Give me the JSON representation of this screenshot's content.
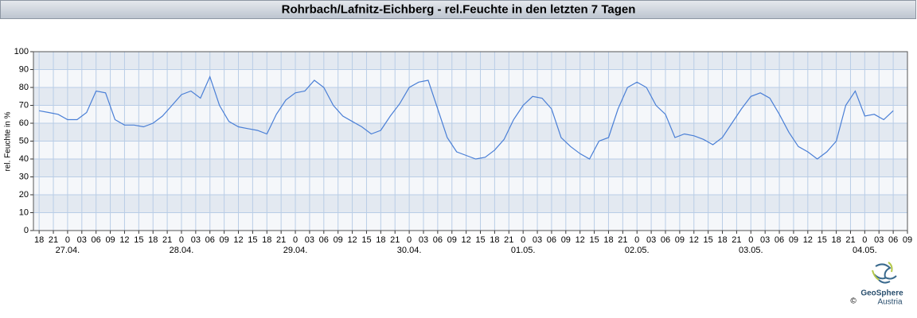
{
  "chart_data": {
    "type": "line",
    "title": "Rohrbach/Lafnitz-Eichberg - rel.Feuchte in den letzten 7 Tagen",
    "y_label": "rel. Feuchte in %",
    "logo_text": "GeoSphere",
    "logo_subtext": "Austria",
    "copyright": "©",
    "color": "#4a7fd6",
    "ylim": [
      0,
      100
    ],
    "yticks": [
      0,
      10,
      20,
      30,
      40,
      50,
      60,
      70,
      80,
      90,
      100
    ],
    "xlim": [
      -1.2,
      183
    ],
    "xticks": [
      {
        "value": 0,
        "label": "18"
      },
      {
        "value": 3,
        "label": "21"
      },
      {
        "value": 6,
        "label": "0"
      },
      {
        "value": 9,
        "label": "03"
      },
      {
        "value": 12,
        "label": "06"
      },
      {
        "value": 15,
        "label": "09"
      },
      {
        "value": 18,
        "label": "12"
      },
      {
        "value": 21,
        "label": "15"
      },
      {
        "value": 24,
        "label": "18"
      },
      {
        "value": 27,
        "label": "21"
      },
      {
        "value": 30,
        "label": "0"
      },
      {
        "value": 33,
        "label": "03"
      },
      {
        "value": 36,
        "label": "06"
      },
      {
        "value": 39,
        "label": "09"
      },
      {
        "value": 42,
        "label": "12"
      },
      {
        "value": 45,
        "label": "15"
      },
      {
        "value": 48,
        "label": "18"
      },
      {
        "value": 51,
        "label": "21"
      },
      {
        "value": 54,
        "label": "0"
      },
      {
        "value": 57,
        "label": "03"
      },
      {
        "value": 60,
        "label": "06"
      },
      {
        "value": 63,
        "label": "09"
      },
      {
        "value": 66,
        "label": "12"
      },
      {
        "value": 69,
        "label": "15"
      },
      {
        "value": 72,
        "label": "18"
      },
      {
        "value": 75,
        "label": "21"
      },
      {
        "value": 78,
        "label": "0"
      },
      {
        "value": 81,
        "label": "03"
      },
      {
        "value": 84,
        "label": "06"
      },
      {
        "value": 87,
        "label": "09"
      },
      {
        "value": 90,
        "label": "12"
      },
      {
        "value": 93,
        "label": "15"
      },
      {
        "value": 96,
        "label": "18"
      },
      {
        "value": 99,
        "label": "21"
      },
      {
        "value": 102,
        "label": "0"
      },
      {
        "value": 105,
        "label": "03"
      },
      {
        "value": 108,
        "label": "06"
      },
      {
        "value": 111,
        "label": "09"
      },
      {
        "value": 114,
        "label": "12"
      },
      {
        "value": 117,
        "label": "15"
      },
      {
        "value": 120,
        "label": "18"
      },
      {
        "value": 123,
        "label": "21"
      },
      {
        "value": 126,
        "label": "0"
      },
      {
        "value": 129,
        "label": "03"
      },
      {
        "value": 132,
        "label": "06"
      },
      {
        "value": 135,
        "label": "09"
      },
      {
        "value": 138,
        "label": "12"
      },
      {
        "value": 141,
        "label": "15"
      },
      {
        "value": 144,
        "label": "18"
      },
      {
        "value": 147,
        "label": "21"
      },
      {
        "value": 150,
        "label": "0"
      },
      {
        "value": 153,
        "label": "03"
      },
      {
        "value": 156,
        "label": "06"
      },
      {
        "value": 159,
        "label": "09"
      },
      {
        "value": 162,
        "label": "12"
      },
      {
        "value": 165,
        "label": "15"
      },
      {
        "value": 168,
        "label": "18"
      },
      {
        "value": 171,
        "label": "21"
      },
      {
        "value": 174,
        "label": "0"
      },
      {
        "value": 177,
        "label": "03"
      },
      {
        "value": 180,
        "label": "06"
      },
      {
        "value": 183,
        "label": "09"
      }
    ],
    "date_labels": [
      {
        "value": 6,
        "label": "27.04."
      },
      {
        "value": 30,
        "label": "28.04."
      },
      {
        "value": 54,
        "label": "29.04."
      },
      {
        "value": 78,
        "label": "30.04."
      },
      {
        "value": 102,
        "label": "01.05."
      },
      {
        "value": 126,
        "label": "02.05."
      },
      {
        "value": 150,
        "label": "03.05."
      },
      {
        "value": 174,
        "label": "04.05."
      }
    ],
    "x": [
      0,
      2,
      4,
      6,
      8,
      10,
      12,
      14,
      16,
      18,
      20,
      22,
      24,
      26,
      28,
      30,
      32,
      34,
      36,
      38,
      40,
      42,
      44,
      46,
      48,
      50,
      52,
      54,
      56,
      58,
      60,
      62,
      64,
      66,
      68,
      70,
      72,
      74,
      76,
      78,
      80,
      82,
      84,
      86,
      88,
      90,
      92,
      94,
      96,
      98,
      100,
      102,
      104,
      106,
      108,
      110,
      112,
      114,
      116,
      118,
      120,
      122,
      124,
      126,
      128,
      130,
      132,
      134,
      136,
      138,
      140,
      142,
      144,
      146,
      148,
      150,
      152,
      154,
      156,
      158,
      160,
      162,
      164,
      166,
      168,
      170,
      172,
      174,
      176,
      178,
      180
    ],
    "values": [
      67,
      66,
      65,
      62,
      62,
      66,
      78,
      77,
      62,
      59,
      59,
      58,
      60,
      64,
      70,
      76,
      78,
      74,
      86,
      70,
      61,
      58,
      57,
      56,
      54,
      65,
      73,
      77,
      78,
      84,
      80,
      70,
      64,
      61,
      58,
      54,
      56,
      64,
      71,
      80,
      83,
      84,
      68,
      52,
      44,
      42,
      40,
      41,
      45,
      51,
      62,
      70,
      75,
      74,
      68,
      52,
      47,
      43,
      40,
      50,
      52,
      68,
      80,
      83,
      80,
      70,
      65,
      52,
      54,
      53,
      51,
      48,
      52,
      60,
      68,
      75,
      77,
      74,
      65,
      55,
      47,
      44,
      40,
      44,
      50,
      70,
      78,
      64,
      65,
      62,
      67
    ]
  }
}
